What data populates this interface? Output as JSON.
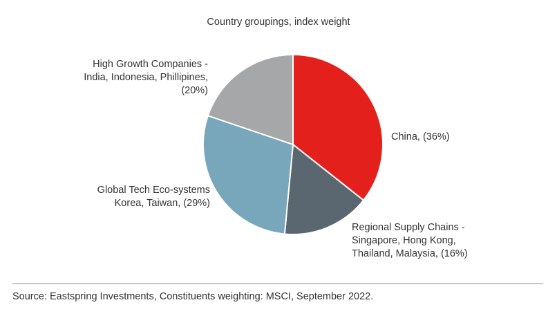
{
  "chart_data": {
    "type": "pie",
    "title": "Country groupings, index weight",
    "slices": [
      {
        "label_lines": [
          "China, (36%)"
        ],
        "value": 36,
        "color": "#e3201b"
      },
      {
        "label_lines": [
          "Regional Supply Chains -",
          "Singapore, Hong Kong,",
          "Thailand, Malaysia, (16%)"
        ],
        "value": 16,
        "color": "#5a6670"
      },
      {
        "label_lines": [
          "Global Tech Eco-systems",
          "Korea, Taiwan, (29%)"
        ],
        "value": 29,
        "color": "#78a6ba"
      },
      {
        "label_lines": [
          "High Growth Companies -",
          "India, Indonesia, Phillipines,",
          "(20%)"
        ],
        "value": 20,
        "color": "#a6a7a9"
      }
    ],
    "start": "12 o'clock",
    "direction": "clockwise"
  },
  "footer": {
    "source": "Source: Eastspring Investments, Constituents weighting: MSCI, September 2022."
  }
}
